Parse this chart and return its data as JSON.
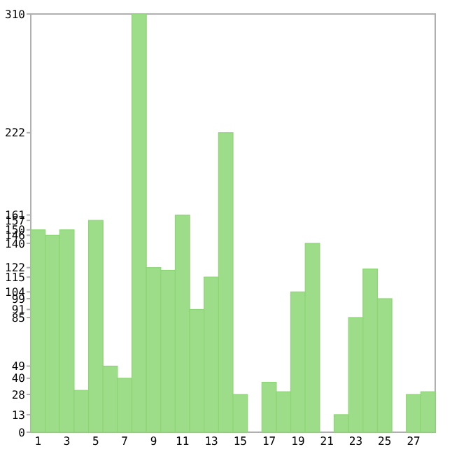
{
  "chart_data": {
    "type": "bar",
    "categories": [
      "1",
      null,
      "3",
      null,
      "5",
      null,
      "7",
      null,
      "9",
      null,
      "11",
      null,
      "13",
      null,
      "15",
      null,
      "17",
      null,
      "19",
      null,
      "21",
      null,
      "23",
      null,
      "25",
      null,
      "27",
      null
    ],
    "values": [
      150,
      146,
      150,
      31,
      157,
      49,
      40,
      310,
      122,
      120,
      161,
      91,
      115,
      222,
      28,
      0,
      37,
      30,
      104,
      140,
      0,
      13,
      85,
      121,
      99,
      0,
      28,
      30
    ],
    "color": "#9ddc88",
    "ylim": [
      0,
      310
    ],
    "yticks": [
      0,
      13,
      28,
      40,
      49,
      85,
      91,
      99,
      104,
      115,
      122,
      140,
      146,
      150,
      157,
      161,
      222,
      310
    ],
    "grid": false
  }
}
